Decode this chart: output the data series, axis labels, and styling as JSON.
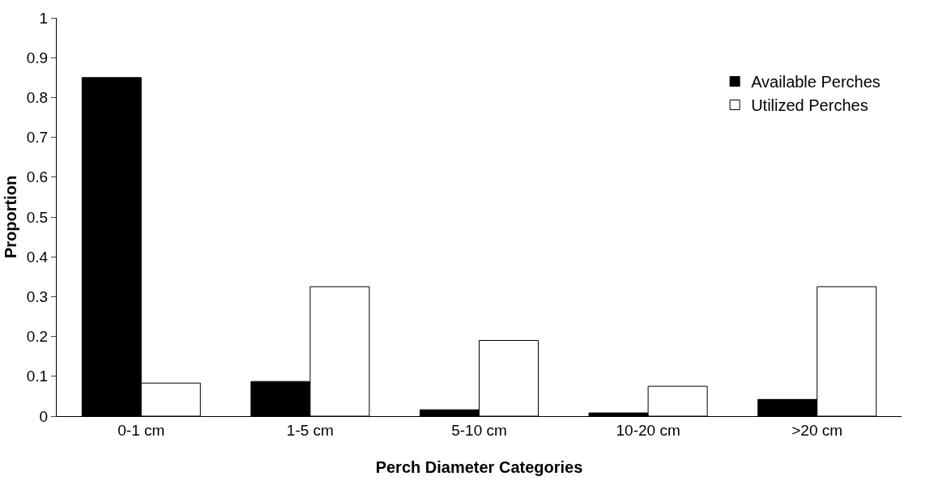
{
  "chart_data": {
    "type": "bar",
    "xlabel": "Perch Diameter Categories",
    "ylabel": "Proportion",
    "categories": [
      "0-1 cm",
      "1-5 cm",
      "5-10 cm",
      "10-20 cm",
      ">20 cm"
    ],
    "series": [
      {
        "name": "Available Perches",
        "color": "#000000",
        "values": [
          0.85,
          0.087,
          0.016,
          0.008,
          0.042
        ]
      },
      {
        "name": "Utilized Perches",
        "color": "#ffffff",
        "values": [
          0.083,
          0.325,
          0.19,
          0.075,
          0.325
        ]
      }
    ],
    "ylim": [
      0,
      1
    ],
    "yticks": [
      0,
      0.1,
      0.2,
      0.3,
      0.4,
      0.5,
      0.6,
      0.7,
      0.8,
      0.9,
      1
    ],
    "grid": false,
    "legend": "top right"
  }
}
